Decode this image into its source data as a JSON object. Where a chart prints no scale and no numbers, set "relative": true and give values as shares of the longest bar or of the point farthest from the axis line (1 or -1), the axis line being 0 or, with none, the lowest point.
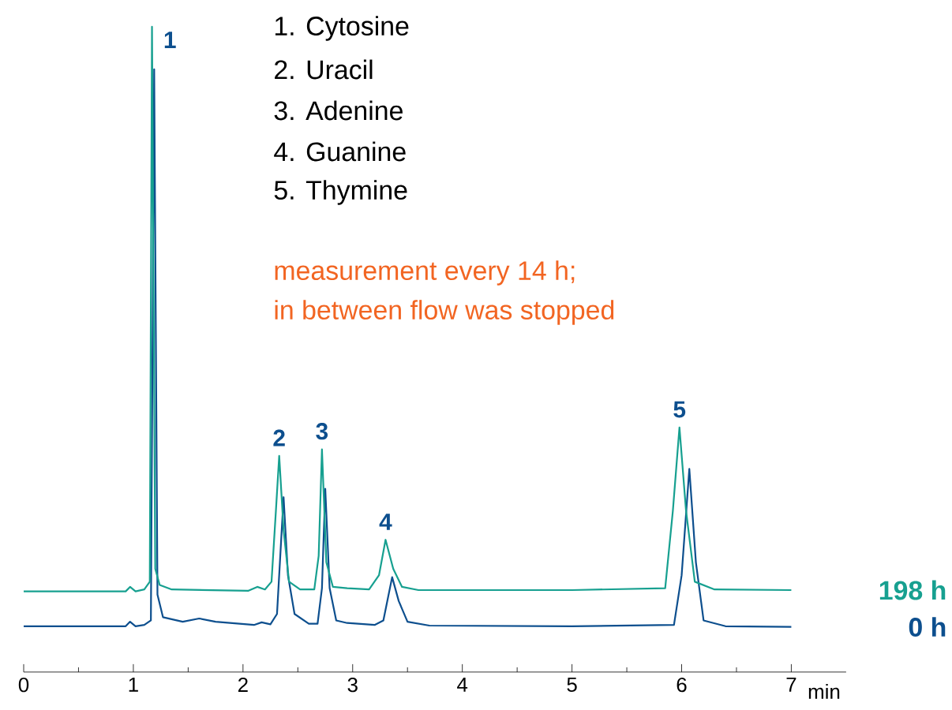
{
  "chart_data": {
    "type": "line",
    "relative": true,
    "xlabel": "min",
    "xlim": [
      0,
      7.5
    ],
    "xticks": [
      0,
      1,
      2,
      3,
      4,
      5,
      6,
      7
    ],
    "marker": "none",
    "series": [
      {
        "name": "198 h",
        "color": "#17a090",
        "x": [
          0,
          0.93,
          0.97,
          1.02,
          1.1,
          1.15,
          1.17,
          1.2,
          1.24,
          1.35,
          2.05,
          2.13,
          2.2,
          2.26,
          2.3,
          2.33,
          2.37,
          2.42,
          2.52,
          2.65,
          2.69,
          2.72,
          2.76,
          2.82,
          2.95,
          3.15,
          3.24,
          3.3,
          3.37,
          3.45,
          3.6,
          5.0,
          5.85,
          5.92,
          5.98,
          6.04,
          6.12,
          6.3,
          7.0
        ],
        "values": [
          0.125,
          0.125,
          0.132,
          0.125,
          0.128,
          0.14,
          1.0,
          0.16,
          0.135,
          0.128,
          0.126,
          0.132,
          0.128,
          0.14,
          0.25,
          0.335,
          0.22,
          0.14,
          0.128,
          0.128,
          0.18,
          0.345,
          0.17,
          0.132,
          0.13,
          0.128,
          0.15,
          0.205,
          0.16,
          0.132,
          0.127,
          0.127,
          0.13,
          0.25,
          0.379,
          0.25,
          0.14,
          0.128,
          0.127
        ]
      },
      {
        "name": "0 h",
        "color": "#0d4f8e",
        "x": [
          0,
          0.93,
          0.97,
          1.02,
          1.1,
          1.16,
          1.19,
          1.22,
          1.27,
          1.45,
          1.6,
          1.75,
          2.1,
          2.17,
          2.25,
          2.31,
          2.37,
          2.41,
          2.47,
          2.6,
          2.68,
          2.72,
          2.75,
          2.79,
          2.85,
          2.95,
          3.2,
          3.28,
          3.36,
          3.42,
          3.5,
          3.7,
          5.0,
          5.93,
          6.0,
          6.07,
          6.13,
          6.2,
          6.4,
          7.0
        ],
        "values": [
          0.071,
          0.071,
          0.078,
          0.071,
          0.073,
          0.08,
          0.934,
          0.12,
          0.085,
          0.078,
          0.083,
          0.078,
          0.073,
          0.077,
          0.074,
          0.09,
          0.271,
          0.15,
          0.09,
          0.075,
          0.075,
          0.13,
          0.284,
          0.13,
          0.08,
          0.076,
          0.073,
          0.08,
          0.147,
          0.11,
          0.078,
          0.072,
          0.071,
          0.073,
          0.15,
          0.315,
          0.17,
          0.08,
          0.071,
          0.07
        ]
      }
    ],
    "annotations": [
      "1. Cytosine",
      "2. Uracil",
      "3. Adenine",
      "4. Guanine",
      "5. Thymine",
      "measurement every 14 h;",
      "in between flow was stopped",
      {
        "text": "1",
        "x": 1.17,
        "y": 1.0
      },
      {
        "text": "2",
        "x": 2.33,
        "y": 0.335
      },
      {
        "text": "3",
        "x": 2.72,
        "y": 0.345
      },
      {
        "text": "4",
        "x": 3.3,
        "y": 0.205
      },
      {
        "text": "5",
        "x": 5.98,
        "y": 0.379
      }
    ]
  }
}
